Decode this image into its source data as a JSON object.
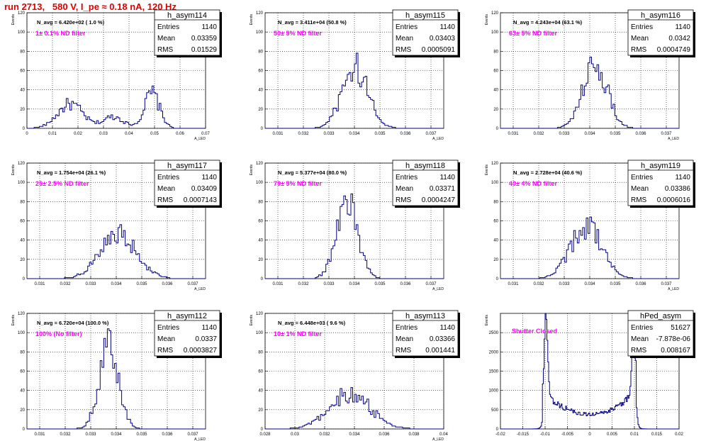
{
  "page": {
    "title": "run 2713,   580 V, I_pe ≈ 0.18 nA, 120 Hz"
  },
  "chart_data": [
    {
      "type": "histogram",
      "name": "h_asym114",
      "entries": "1140",
      "mean": "0.03359",
      "rms": "0.01529",
      "navg": "N_avg = 6.420e+02 ( 1.0 %)",
      "note": "1± 0.1% ND filter",
      "xlabel": "A_LED",
      "ylabel": "Events",
      "xlim": [
        0,
        0.07
      ],
      "ylim": [
        0,
        120
      ],
      "xticks": [
        0,
        0.01,
        0.02,
        0.03,
        0.04,
        0.05,
        0.06,
        0.07
      ],
      "xtick_labels": [
        "0",
        "0.01",
        "0.02",
        "0.03",
        "0.04",
        "0.05",
        "0.06",
        "0.07"
      ],
      "yticks": [
        0,
        20,
        40,
        60,
        80,
        100,
        120
      ],
      "bin_width": 0.0007,
      "peaks": [
        {
          "center": 0.017,
          "sigma": 0.005,
          "height": 25
        },
        {
          "center": 0.049,
          "sigma": 0.003,
          "height": 36
        },
        {
          "center": 0.034,
          "sigma": 0.004,
          "height": 12
        }
      ]
    },
    {
      "type": "histogram",
      "name": "h_asym115",
      "entries": "1140",
      "mean": "0.03403",
      "rms": "0.0005091",
      "navg": "N_avg = 3.411e+04 (50.8 %)",
      "note": "50± 5% ND filter",
      "xlabel": "A_LED",
      "ylabel": "Events",
      "xlim": [
        0.0305,
        0.0375
      ],
      "ylim": [
        0,
        120
      ],
      "xticks": [
        0.031,
        0.032,
        0.033,
        0.034,
        0.035,
        0.036,
        0.037
      ],
      "xtick_labels": [
        "0.031",
        "0.032",
        "0.033",
        "0.034",
        "0.035",
        "0.036",
        "0.037"
      ],
      "yticks": [
        0,
        20,
        40,
        60,
        80,
        100,
        120
      ],
      "bin_width": 7e-05,
      "peaks": [
        {
          "center": 0.03403,
          "sigma": 0.00051,
          "height": 62
        }
      ]
    },
    {
      "type": "histogram",
      "name": "h_asym116",
      "entries": "1140",
      "mean": "0.0342",
      "rms": "0.0004749",
      "navg": "N_avg = 4.243e+04 (63.1 %)",
      "note": "63± 5% ND filter",
      "xlabel": "A_LED",
      "ylabel": "Events",
      "xlim": [
        0.0305,
        0.0375
      ],
      "ylim": [
        0,
        120
      ],
      "xticks": [
        0.031,
        0.032,
        0.033,
        0.034,
        0.035,
        0.036,
        0.037
      ],
      "xtick_labels": [
        "0.031",
        "0.032",
        "0.033",
        "0.034",
        "0.035",
        "0.036",
        "0.037"
      ],
      "yticks": [
        0,
        20,
        40,
        60,
        80,
        100,
        120
      ],
      "bin_width": 7e-05,
      "peaks": [
        {
          "center": 0.0342,
          "sigma": 0.00047,
          "height": 68
        }
      ]
    },
    {
      "type": "histogram",
      "name": "h_asym117",
      "entries": "1140",
      "mean": "0.03409",
      "rms": "0.0007143",
      "navg": "N_avg = 1.754e+04 (26.1 %)",
      "note": "25± 2.5% ND filter",
      "xlabel": "A_LED",
      "ylabel": "Events",
      "xlim": [
        0.0305,
        0.0375
      ],
      "ylim": [
        0,
        120
      ],
      "xticks": [
        0.031,
        0.032,
        0.033,
        0.034,
        0.035,
        0.036,
        0.037
      ],
      "xtick_labels": [
        "0.031",
        "0.032",
        "0.033",
        "0.034",
        "0.035",
        "0.036",
        "0.037"
      ],
      "yticks": [
        0,
        20,
        40,
        60,
        80,
        100,
        120
      ],
      "bin_width": 7e-05,
      "peaks": [
        {
          "center": 0.03409,
          "sigma": 0.00071,
          "height": 45
        }
      ]
    },
    {
      "type": "histogram",
      "name": "h_asym118",
      "entries": "1140",
      "mean": "0.03371",
      "rms": "0.0004247",
      "navg": "N_avg = 5.377e+04 (80.0 %)",
      "note": "79± 5% ND filter",
      "xlabel": "A_LED",
      "ylabel": "Events",
      "xlim": [
        0.0305,
        0.0375
      ],
      "ylim": [
        0,
        120
      ],
      "xticks": [
        0.031,
        0.032,
        0.033,
        0.034,
        0.035,
        0.036,
        0.037
      ],
      "xtick_labels": [
        "0.031",
        "0.032",
        "0.033",
        "0.034",
        "0.035",
        "0.036",
        "0.037"
      ],
      "yticks": [
        0,
        20,
        40,
        60,
        80,
        100,
        120
      ],
      "bin_width": 7e-05,
      "peaks": [
        {
          "center": 0.03371,
          "sigma": 0.00042,
          "height": 78
        }
      ]
    },
    {
      "type": "histogram",
      "name": "h_asym119",
      "entries": "1140",
      "mean": "0.03386",
      "rms": "0.0006016",
      "navg": "N_avg = 2.728e+04 (40.6 %)",
      "note": "40± 4% ND filter",
      "xlabel": "A_LED",
      "ylabel": "Events",
      "xlim": [
        0.0305,
        0.0375
      ],
      "ylim": [
        0,
        120
      ],
      "xticks": [
        0.031,
        0.032,
        0.033,
        0.034,
        0.035,
        0.036,
        0.037
      ],
      "xtick_labels": [
        "0.031",
        "0.032",
        "0.033",
        "0.034",
        "0.035",
        "0.036",
        "0.037"
      ],
      "yticks": [
        0,
        20,
        40,
        60,
        80,
        100,
        120
      ],
      "bin_width": 7e-05,
      "peaks": [
        {
          "center": 0.03386,
          "sigma": 0.0006,
          "height": 56
        }
      ]
    },
    {
      "type": "histogram",
      "name": "h_asym112",
      "entries": "1140",
      "mean": "0.0337",
      "rms": "0.0003827",
      "navg": "N_avg = 6.720e+04 (100.0 %)",
      "note": "100% (No filter)",
      "xlabel": "A_LED",
      "ylabel": "Events",
      "xlim": [
        0.0305,
        0.0375
      ],
      "ylim": [
        0,
        120
      ],
      "xticks": [
        0.031,
        0.032,
        0.033,
        0.034,
        0.035,
        0.036,
        0.037
      ],
      "xtick_labels": [
        "0.031",
        "0.032",
        "0.033",
        "0.034",
        "0.035",
        "0.036",
        "0.037"
      ],
      "yticks": [
        0,
        20,
        40,
        60,
        80,
        100,
        120
      ],
      "bin_width": 7e-05,
      "peaks": [
        {
          "center": 0.0337,
          "sigma": 0.00038,
          "height": 84
        }
      ]
    },
    {
      "type": "histogram",
      "name": "h_asym113",
      "entries": "1140",
      "mean": "0.03366",
      "rms": "0.001441",
      "navg": "N_avg = 6.448e+03 ( 9.6 %)",
      "note": "10± 1% ND filter",
      "xlabel": "A_LED",
      "ylabel": "Events",
      "xlim": [
        0.028,
        0.04
      ],
      "ylim": [
        0,
        120
      ],
      "xticks": [
        0.028,
        0.03,
        0.032,
        0.034,
        0.036,
        0.038,
        0.04
      ],
      "xtick_labels": [
        "0.028",
        "0.03",
        "0.032",
        "0.034",
        "0.036",
        "0.038",
        "0.04"
      ],
      "yticks": [
        0,
        20,
        40,
        60,
        80,
        100,
        120
      ],
      "bin_width": 0.00012,
      "peaks": [
        {
          "center": 0.03366,
          "sigma": 0.0014,
          "height": 36
        }
      ]
    },
    {
      "type": "histogram",
      "name": "hPed_asym",
      "entries": "51627",
      "mean": "-7.878e-06",
      "rms": "0.008167",
      "navg": "",
      "note": "Shutter Closed",
      "xlabel": "",
      "ylabel": "Events",
      "xlim": [
        -0.02,
        0.02
      ],
      "ylim": [
        0,
        3000
      ],
      "xticks": [
        -0.02,
        -0.015,
        -0.01,
        -0.005,
        0,
        0.005,
        0.01,
        0.015,
        0.02
      ],
      "xtick_labels": [
        "-0.02",
        "-0.015",
        "-0.01",
        "-0.005",
        "0",
        "0.005",
        "0.01",
        "0.015",
        "0.02"
      ],
      "yticks": [
        0,
        500,
        1000,
        1500,
        2000,
        2500
      ],
      "bin_width": 0.0002,
      "profile": "pedestal"
    }
  ]
}
